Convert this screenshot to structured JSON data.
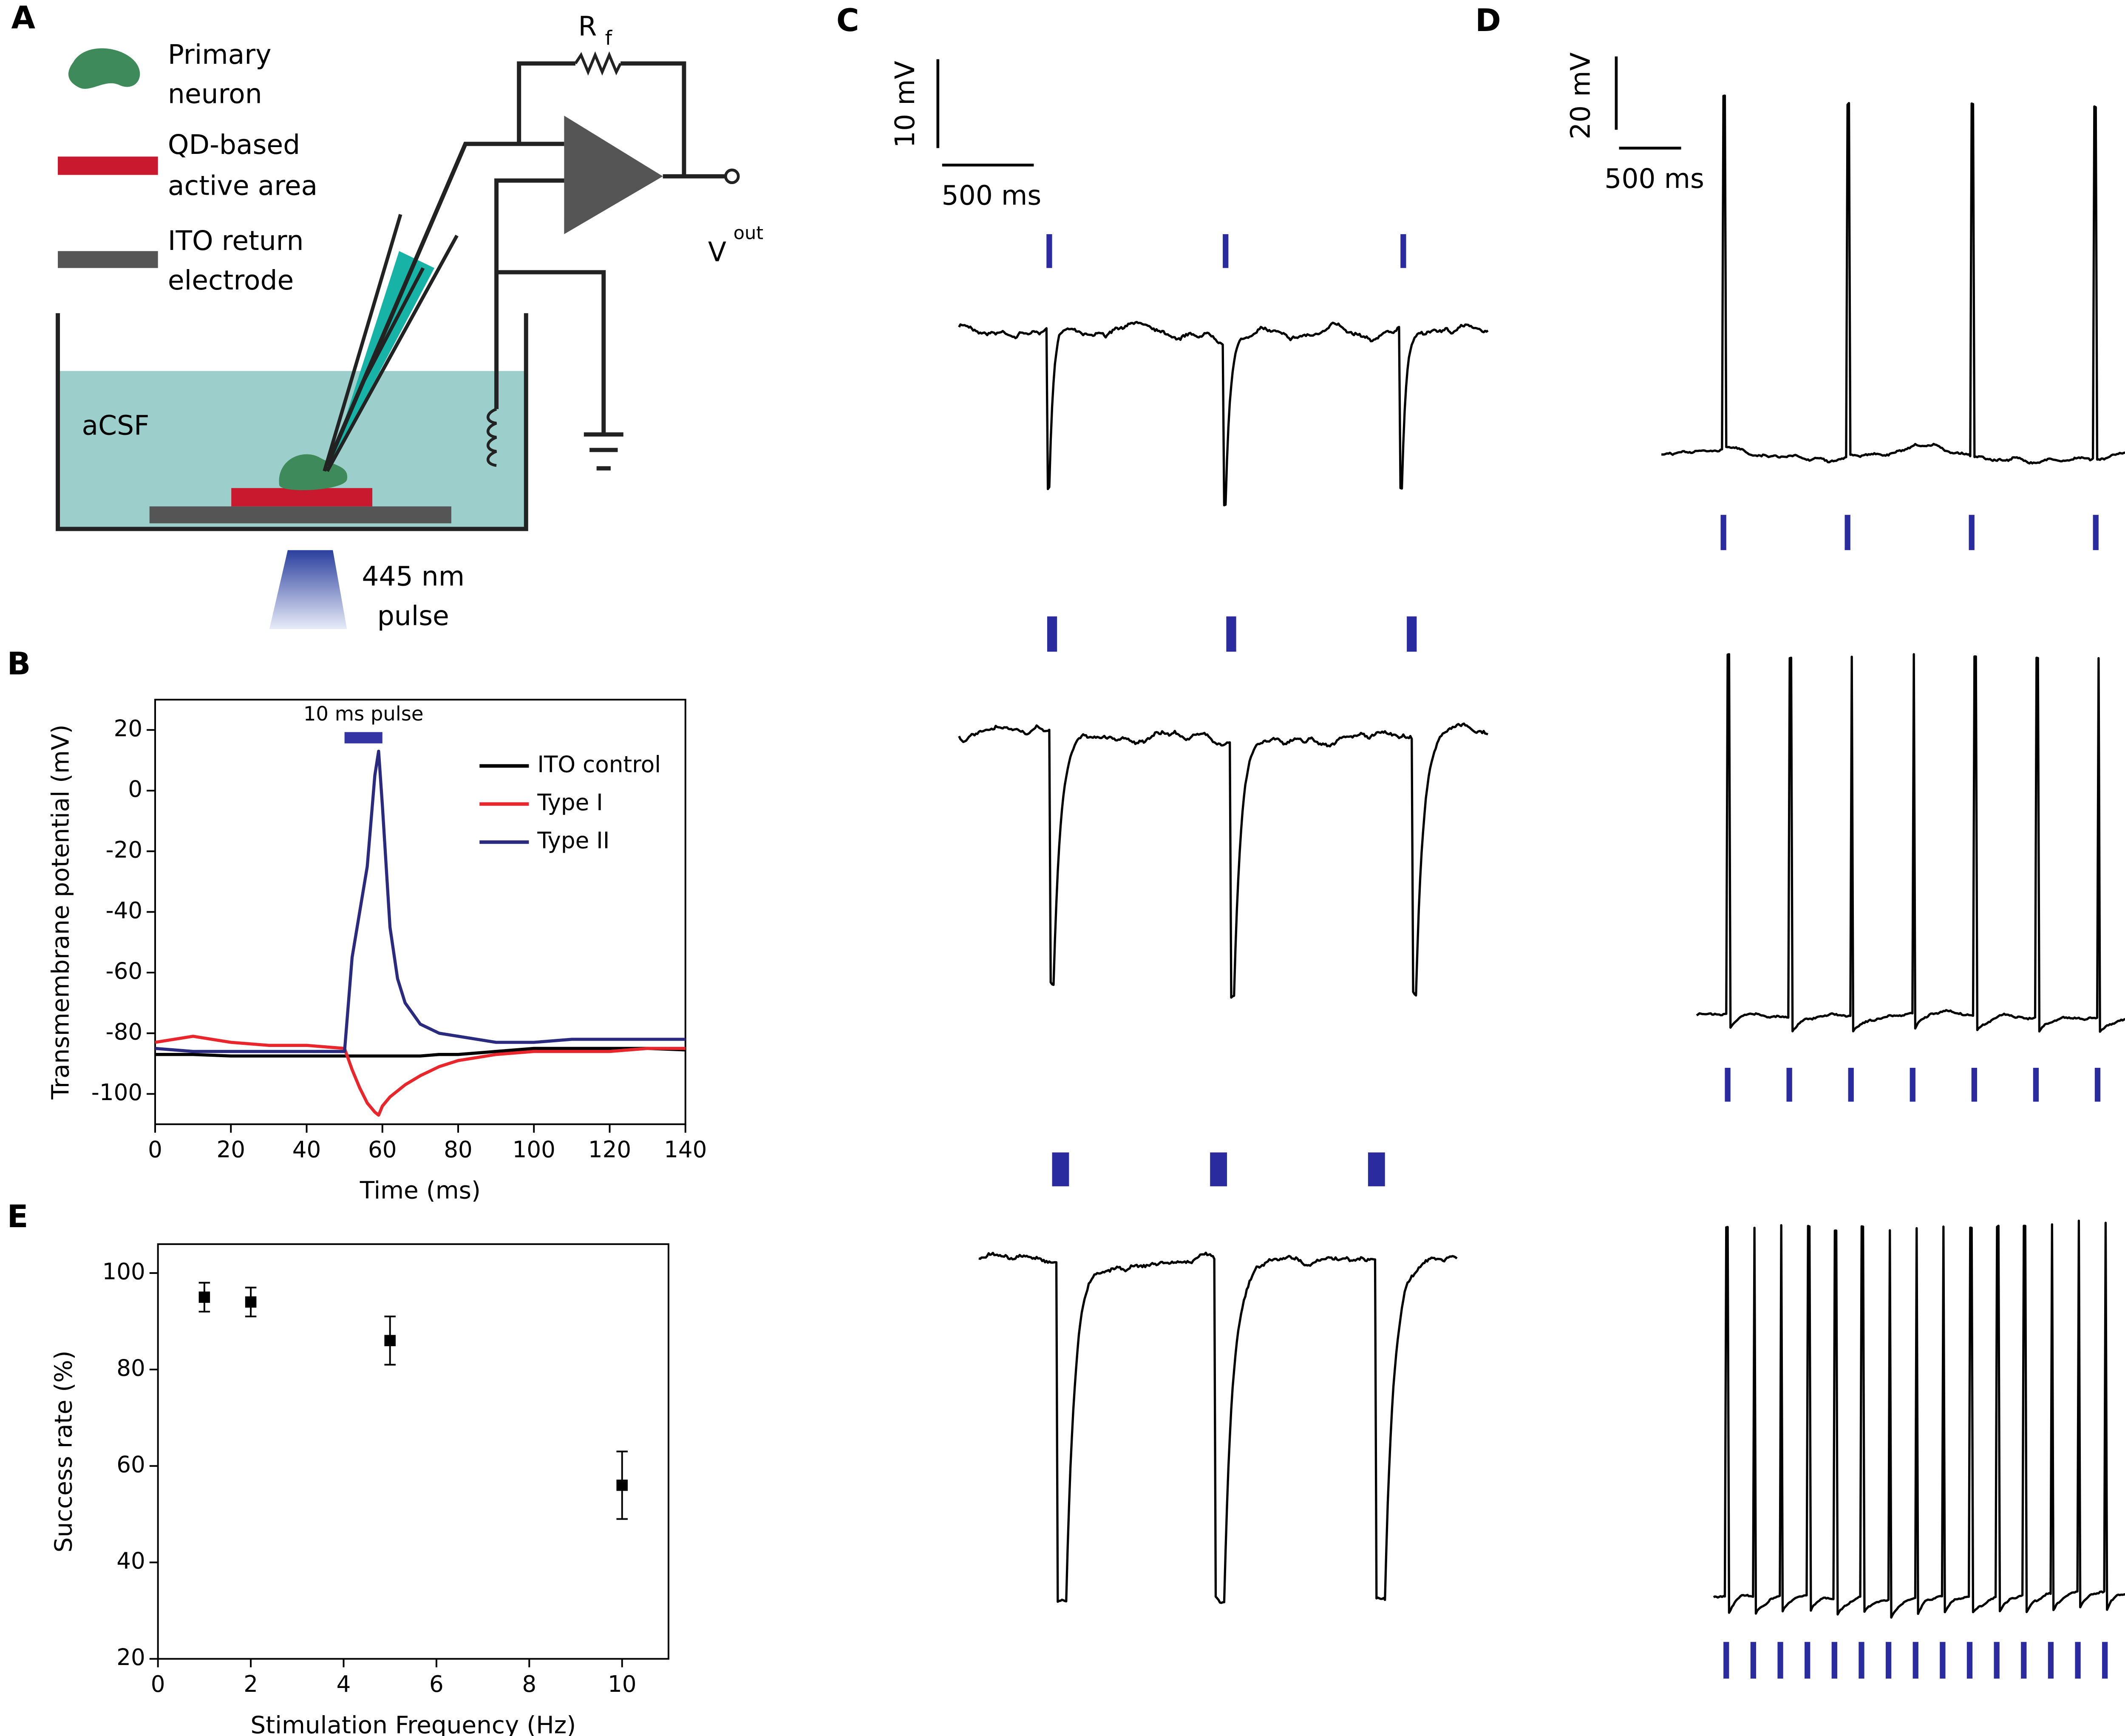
{
  "panels": [
    "A",
    "B",
    "C",
    "D",
    "E"
  ],
  "diagram": {
    "neuron": [
      "Primary",
      "neuron"
    ],
    "active_area": [
      "QD-based",
      "active area"
    ],
    "return_electrode": [
      "ITO return",
      "electrode"
    ],
    "medium": "aCSF",
    "light": [
      "445 nm",
      "pulse"
    ],
    "resistor": "R",
    "resistor_sub": "f",
    "output": "V",
    "output_sub": "out"
  },
  "scale_bars": {
    "C": [
      "10 mV",
      "500 ms"
    ],
    "D": [
      "20 mV",
      "500 ms"
    ]
  },
  "chart_data": [
    {
      "type": "line",
      "xlabel": "Time (ms)",
      "ylabel": "Transmembrane potential (mV)",
      "annotation": "10 ms pulse",
      "pulse": [
        50,
        60
      ],
      "pulse_color": "#3434a4",
      "x": [
        0,
        10,
        20,
        30,
        40,
        50,
        52,
        54,
        56,
        58,
        59,
        60,
        62,
        64,
        66,
        70,
        75,
        80,
        90,
        100,
        110,
        120,
        130,
        140
      ],
      "series": [
        {
          "name": "ITO control",
          "color": "#000000",
          "values": [
            -87,
            -87,
            -87.5,
            -87.5,
            -87.5,
            -87.5,
            -87.5,
            -87.5,
            -87.5,
            -87.5,
            -87.5,
            -87.5,
            -87.5,
            -87.5,
            -87.5,
            -87.5,
            -87,
            -87,
            -86,
            -85,
            -85,
            -85,
            -85,
            -85.5
          ]
        },
        {
          "name": "Type I",
          "color": "#e8262b",
          "values": [
            -83,
            -81,
            -83,
            -84,
            -84,
            -85,
            -92,
            -98,
            -103,
            -106,
            -107,
            -104,
            -101,
            -99,
            -97,
            -94,
            -91,
            -89,
            -87,
            -86,
            -86,
            -86,
            -85,
            -85
          ]
        },
        {
          "name": "Type II",
          "color": "#2a2a7e",
          "values": [
            -85,
            -86,
            -86,
            -86,
            -86,
            -86,
            -55,
            -40,
            -25,
            5,
            13,
            -5,
            -45,
            -62,
            -70,
            -77,
            -80,
            -81,
            -83,
            -83,
            -82,
            -82,
            -82,
            -82
          ]
        }
      ],
      "xlim": [
        0,
        140
      ],
      "xticks": [
        0,
        20,
        40,
        60,
        80,
        100,
        120,
        140
      ],
      "ylim": [
        -110,
        30
      ],
      "yticks": [
        -100,
        -80,
        -60,
        -40,
        -20,
        0,
        20
      ]
    },
    {
      "type": "scatter",
      "xlabel": "Stimulation Frequency (Hz)",
      "ylabel": "Success rate (%)",
      "color": "#000000",
      "x": [
        1,
        2,
        5,
        10
      ],
      "values": [
        95,
        94,
        86,
        56
      ],
      "errors": [
        3,
        3,
        5,
        7
      ],
      "xlim": [
        0,
        11
      ],
      "xticks": [
        0,
        2,
        4,
        6,
        8,
        10
      ],
      "ylim": [
        20,
        106
      ],
      "yticks": [
        20,
        40,
        60,
        80,
        100
      ]
    }
  ]
}
